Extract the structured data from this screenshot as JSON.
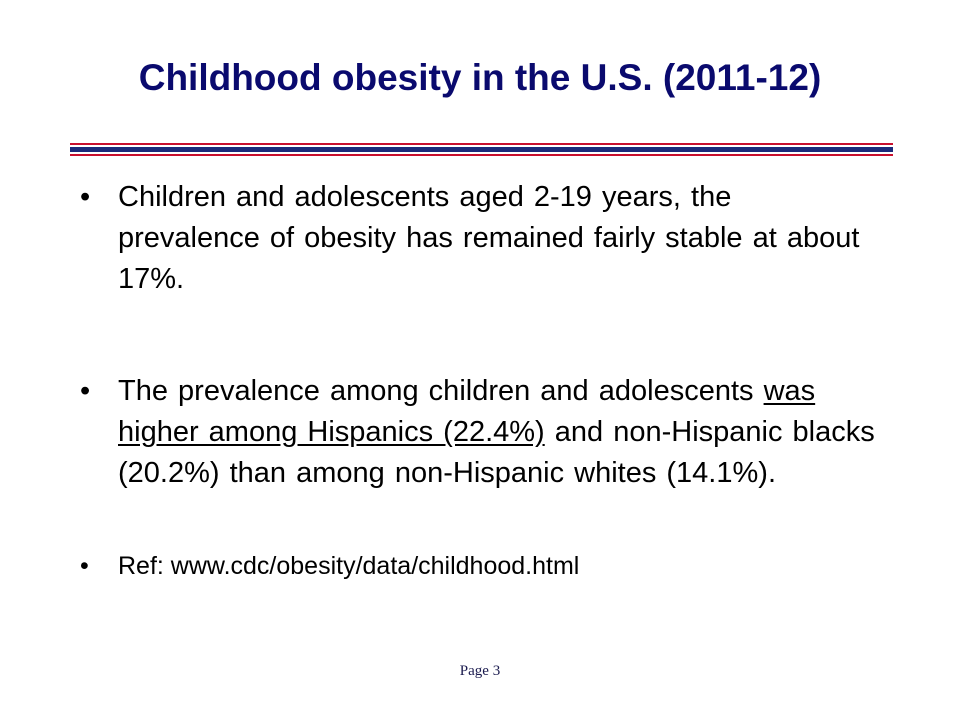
{
  "slide": {
    "title": "Childhood obesity in the U.S. (2011-12)",
    "bullet_char": "•",
    "bullets": [
      {
        "text": "Children and adolescents aged 2-19 years, the prevalence of obesity has remained fairly stable at about 17%."
      },
      {
        "part1": "The prevalence among children and adolescents ",
        "underlined": "was higher among Hispanics (22.4%)",
        "part2": " and non-Hispanic blacks (20.2%) than among non-Hispanic whites (14.1%)."
      },
      {
        "text": "Ref: www.cdc/obesity/data/childhood.html"
      }
    ],
    "footer": "Page 3"
  },
  "colors": {
    "title": "#0a0a6e",
    "rule_red": "#c8102e",
    "rule_blue": "#1a2a7a",
    "text": "#000000"
  }
}
